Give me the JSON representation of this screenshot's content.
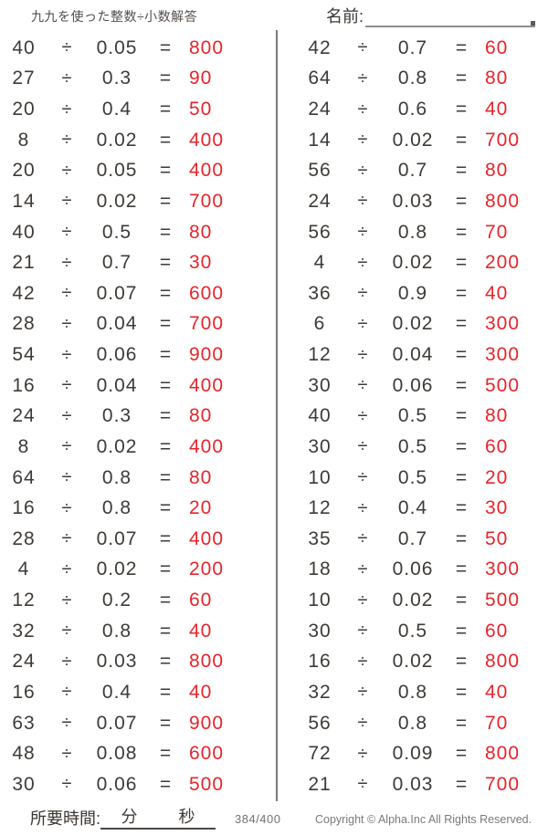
{
  "header": {
    "title": "九九を使った整数÷小数解答",
    "name_label": "名前:"
  },
  "symbols": {
    "divide": "÷",
    "equals": "="
  },
  "problems": {
    "left_column": [
      {
        "dividend": "40",
        "divisor": "0.05",
        "answer": "800"
      },
      {
        "dividend": "27",
        "divisor": "0.3",
        "answer": "90"
      },
      {
        "dividend": "20",
        "divisor": "0.4",
        "answer": "50"
      },
      {
        "dividend": "8",
        "divisor": "0.02",
        "answer": "400"
      },
      {
        "dividend": "20",
        "divisor": "0.05",
        "answer": "400"
      },
      {
        "dividend": "14",
        "divisor": "0.02",
        "answer": "700"
      },
      {
        "dividend": "40",
        "divisor": "0.5",
        "answer": "80"
      },
      {
        "dividend": "21",
        "divisor": "0.7",
        "answer": "30"
      },
      {
        "dividend": "42",
        "divisor": "0.07",
        "answer": "600"
      },
      {
        "dividend": "28",
        "divisor": "0.04",
        "answer": "700"
      },
      {
        "dividend": "54",
        "divisor": "0.06",
        "answer": "900"
      },
      {
        "dividend": "16",
        "divisor": "0.04",
        "answer": "400"
      },
      {
        "dividend": "24",
        "divisor": "0.3",
        "answer": "80"
      },
      {
        "dividend": "8",
        "divisor": "0.02",
        "answer": "400"
      },
      {
        "dividend": "64",
        "divisor": "0.8",
        "answer": "80"
      },
      {
        "dividend": "16",
        "divisor": "0.8",
        "answer": "20"
      },
      {
        "dividend": "28",
        "divisor": "0.07",
        "answer": "400"
      },
      {
        "dividend": "4",
        "divisor": "0.02",
        "answer": "200"
      },
      {
        "dividend": "12",
        "divisor": "0.2",
        "answer": "60"
      },
      {
        "dividend": "32",
        "divisor": "0.8",
        "answer": "40"
      },
      {
        "dividend": "24",
        "divisor": "0.03",
        "answer": "800"
      },
      {
        "dividend": "16",
        "divisor": "0.4",
        "answer": "40"
      },
      {
        "dividend": "63",
        "divisor": "0.07",
        "answer": "900"
      },
      {
        "dividend": "48",
        "divisor": "0.08",
        "answer": "600"
      },
      {
        "dividend": "30",
        "divisor": "0.06",
        "answer": "500"
      }
    ],
    "right_column": [
      {
        "dividend": "42",
        "divisor": "0.7",
        "answer": "60"
      },
      {
        "dividend": "64",
        "divisor": "0.8",
        "answer": "80"
      },
      {
        "dividend": "24",
        "divisor": "0.6",
        "answer": "40"
      },
      {
        "dividend": "14",
        "divisor": "0.02",
        "answer": "700"
      },
      {
        "dividend": "56",
        "divisor": "0.7",
        "answer": "80"
      },
      {
        "dividend": "24",
        "divisor": "0.03",
        "answer": "800"
      },
      {
        "dividend": "56",
        "divisor": "0.8",
        "answer": "70"
      },
      {
        "dividend": "4",
        "divisor": "0.02",
        "answer": "200"
      },
      {
        "dividend": "36",
        "divisor": "0.9",
        "answer": "40"
      },
      {
        "dividend": "6",
        "divisor": "0.02",
        "answer": "300"
      },
      {
        "dividend": "12",
        "divisor": "0.04",
        "answer": "300"
      },
      {
        "dividend": "30",
        "divisor": "0.06",
        "answer": "500"
      },
      {
        "dividend": "40",
        "divisor": "0.5",
        "answer": "80"
      },
      {
        "dividend": "30",
        "divisor": "0.5",
        "answer": "60"
      },
      {
        "dividend": "10",
        "divisor": "0.5",
        "answer": "20"
      },
      {
        "dividend": "12",
        "divisor": "0.4",
        "answer": "30"
      },
      {
        "dividend": "35",
        "divisor": "0.7",
        "answer": "50"
      },
      {
        "dividend": "18",
        "divisor": "0.06",
        "answer": "300"
      },
      {
        "dividend": "10",
        "divisor": "0.02",
        "answer": "500"
      },
      {
        "dividend": "30",
        "divisor": "0.5",
        "answer": "60"
      },
      {
        "dividend": "16",
        "divisor": "0.02",
        "answer": "800"
      },
      {
        "dividend": "32",
        "divisor": "0.8",
        "answer": "40"
      },
      {
        "dividend": "56",
        "divisor": "0.8",
        "answer": "70"
      },
      {
        "dividend": "72",
        "divisor": "0.09",
        "answer": "800"
      },
      {
        "dividend": "21",
        "divisor": "0.03",
        "answer": "700"
      }
    ]
  },
  "footer": {
    "time_label": "所要時間:",
    "minutes_label": "分",
    "seconds_label": "秒",
    "score": "384/400",
    "copyright": "Copyright © Alpha.Inc All Rights Reserved."
  },
  "colors": {
    "answer_red": "#e7242b",
    "text_ink": "#3e3a36",
    "divider_gray": "#7b7b7b"
  }
}
